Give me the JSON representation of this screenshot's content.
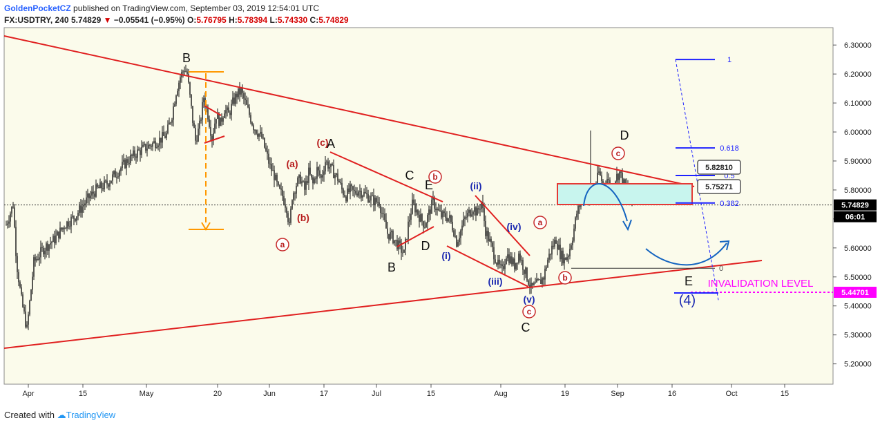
{
  "header": {
    "author": "GoldenPocketCZ",
    "published": "published on TradingView.com, September 03, 2019 12:54:01 UTC",
    "symbol": "FX:USDTRY, 240",
    "last": "5.74829",
    "change": "−0.05541 (−0.95%)",
    "o_label": "O:",
    "o": "5.76795",
    "h_label": "H:",
    "h": "5.78394",
    "l_label": "L:",
    "l": "5.74330",
    "c_label": "C:",
    "c": "5.74829"
  },
  "footer": {
    "created_with": "Created with",
    "brand": "TradingView"
  },
  "colors": {
    "background": "#fbfbeb",
    "candle": "#111111",
    "trendline": "#e02020",
    "wave_red": "#b71c1c",
    "wave_blue": "#1a28b0",
    "fib": "#1e22ff",
    "invalidation": "#ff00ff",
    "orange": "#ff9800",
    "zone": "#c8f5ee"
  },
  "chart_data": {
    "type": "candlestick",
    "instrument": "FX:USDTRY",
    "timeframe": "240",
    "ylim": [
      5.13,
      6.36
    ],
    "y_ticks": [
      "6.30000",
      "6.20000",
      "6.10000",
      "6.00000",
      "5.90000",
      "5.80000",
      "5.70000",
      "5.60000",
      "5.50000",
      "5.40000",
      "5.30000",
      "5.20000"
    ],
    "x_ticks": [
      "Apr",
      "15",
      "May",
      "20",
      "Jun",
      "17",
      "Jul",
      "15",
      "Aug",
      "19",
      "Sep",
      "16",
      "Oct",
      "15"
    ],
    "last_price_label": "5.74829",
    "countdown_label": "06:01",
    "invalidation_price_label": "5.44701",
    "invalidation_text": "INVALIDATION LEVEL",
    "price_callouts": [
      "5.82810",
      "5.75271"
    ],
    "fib_levels": [
      {
        "label": "1",
        "price": 6.25
      },
      {
        "label": "0.618",
        "price": 5.945
      },
      {
        "label": "0.5",
        "price": 5.85
      },
      {
        "label": "0.382",
        "price": 5.755
      },
      {
        "label": "0",
        "price": 5.53
      }
    ],
    "wave_labels": {
      "black": [
        "B",
        "A",
        "C",
        "E",
        "D",
        "B",
        "C",
        "D",
        "E"
      ],
      "red_plain": [
        "(c)",
        "(a)",
        "(b)"
      ],
      "red_circled": [
        "a",
        "b",
        "a",
        "b",
        "c",
        "c"
      ],
      "blue": [
        "(ii)",
        "(iv)",
        "(i)",
        "(iii)",
        "(v)",
        "(4)"
      ]
    },
    "price_path": [
      [
        0,
        5.68
      ],
      [
        10,
        5.75
      ],
      [
        15,
        5.55
      ],
      [
        22,
        5.42
      ],
      [
        30,
        5.32
      ],
      [
        40,
        5.55
      ],
      [
        55,
        5.6
      ],
      [
        70,
        5.63
      ],
      [
        85,
        5.68
      ],
      [
        100,
        5.71
      ],
      [
        115,
        5.76
      ],
      [
        130,
        5.8
      ],
      [
        145,
        5.82
      ],
      [
        160,
        5.86
      ],
      [
        175,
        5.9
      ],
      [
        190,
        5.93
      ],
      [
        205,
        5.95
      ],
      [
        220,
        5.97
      ],
      [
        232,
        5.99
      ],
      [
        240,
        6.06
      ],
      [
        246,
        6.14
      ],
      [
        252,
        6.19
      ],
      [
        258,
        6.22
      ],
      [
        262,
        6.2
      ],
      [
        266,
        6.12
      ],
      [
        270,
        6.04
      ],
      [
        274,
        5.97
      ],
      [
        280,
        6.02
      ],
      [
        286,
        6.12
      ],
      [
        292,
        6.06
      ],
      [
        298,
        5.98
      ],
      [
        304,
        6.06
      ],
      [
        310,
        6.03
      ],
      [
        316,
        6.08
      ],
      [
        322,
        6.06
      ],
      [
        328,
        6.1
      ],
      [
        334,
        6.13
      ],
      [
        340,
        6.14
      ],
      [
        346,
        6.1
      ],
      [
        352,
        6.06
      ],
      [
        358,
        6.02
      ],
      [
        364,
        6.0
      ],
      [
        370,
        5.98
      ],
      [
        376,
        5.93
      ],
      [
        382,
        5.88
      ],
      [
        388,
        5.85
      ],
      [
        394,
        5.8
      ],
      [
        400,
        5.78
      ],
      [
        406,
        5.74
      ],
      [
        410,
        5.67
      ],
      [
        414,
        5.78
      ],
      [
        420,
        5.82
      ],
      [
        426,
        5.84
      ],
      [
        432,
        5.8
      ],
      [
        438,
        5.86
      ],
      [
        444,
        5.82
      ],
      [
        450,
        5.87
      ],
      [
        456,
        5.84
      ],
      [
        462,
        5.9
      ],
      [
        468,
        5.88
      ],
      [
        474,
        5.86
      ],
      [
        480,
        5.84
      ],
      [
        486,
        5.8
      ],
      [
        492,
        5.78
      ],
      [
        498,
        5.8
      ],
      [
        504,
        5.79
      ],
      [
        510,
        5.8
      ],
      [
        516,
        5.79
      ],
      [
        522,
        5.78
      ],
      [
        528,
        5.77
      ],
      [
        534,
        5.76
      ],
      [
        540,
        5.76
      ],
      [
        546,
        5.7
      ],
      [
        552,
        5.65
      ],
      [
        558,
        5.64
      ],
      [
        564,
        5.62
      ],
      [
        570,
        5.6
      ],
      [
        576,
        5.58
      ],
      [
        582,
        5.68
      ],
      [
        588,
        5.75
      ],
      [
        594,
        5.73
      ],
      [
        600,
        5.7
      ],
      [
        606,
        5.68
      ],
      [
        612,
        5.72
      ],
      [
        618,
        5.76
      ],
      [
        624,
        5.73
      ],
      [
        630,
        5.71
      ],
      [
        636,
        5.71
      ],
      [
        642,
        5.7
      ],
      [
        648,
        5.66
      ],
      [
        652,
        5.62
      ],
      [
        658,
        5.66
      ],
      [
        664,
        5.7
      ],
      [
        670,
        5.72
      ],
      [
        676,
        5.74
      ],
      [
        682,
        5.72
      ],
      [
        688,
        5.76
      ],
      [
        694,
        5.66
      ],
      [
        700,
        5.62
      ],
      [
        706,
        5.58
      ],
      [
        712,
        5.54
      ],
      [
        718,
        5.52
      ],
      [
        724,
        5.58
      ],
      [
        730,
        5.56
      ],
      [
        736,
        5.54
      ],
      [
        742,
        5.58
      ],
      [
        748,
        5.54
      ],
      [
        754,
        5.5
      ],
      [
        760,
        5.46
      ],
      [
        766,
        5.47
      ],
      [
        772,
        5.48
      ],
      [
        778,
        5.5
      ],
      [
        784,
        5.56
      ],
      [
        790,
        5.6
      ],
      [
        796,
        5.63
      ],
      [
        802,
        5.58
      ],
      [
        808,
        5.56
      ],
      [
        814,
        5.58
      ],
      [
        820,
        5.64
      ],
      [
        826,
        5.72
      ],
      [
        832,
        5.76
      ],
      [
        838,
        5.8
      ],
      [
        844,
        5.76
      ],
      [
        850,
        5.78
      ],
      [
        854,
        5.82
      ],
      [
        858,
        5.86
      ],
      [
        864,
        5.82
      ],
      [
        870,
        5.84
      ],
      [
        876,
        5.8
      ],
      [
        882,
        5.84
      ],
      [
        888,
        5.86
      ],
      [
        894,
        5.82
      ],
      [
        900,
        5.8
      ],
      [
        905,
        5.76
      ],
      [
        906,
        5.748
      ]
    ]
  }
}
